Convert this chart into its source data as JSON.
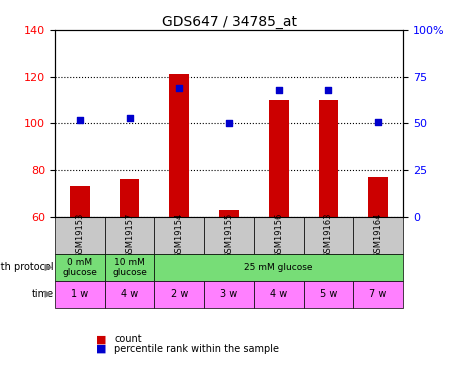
{
  "title": "GDS647 / 34785_at",
  "samples": [
    "GSM19153",
    "GSM19157",
    "GSM19154",
    "GSM19155",
    "GSM19156",
    "GSM19163",
    "GSM19164"
  ],
  "count_values": [
    73,
    76,
    121,
    63,
    110,
    110,
    77
  ],
  "percentile_values": [
    52,
    53,
    69,
    50,
    68,
    68,
    51
  ],
  "ylim_left": [
    60,
    140
  ],
  "ylim_right": [
    0,
    100
  ],
  "yticks_left": [
    60,
    80,
    100,
    120,
    140
  ],
  "yticks_right": [
    0,
    25,
    50,
    75,
    100
  ],
  "growth_protocol": [
    {
      "label": "0 mM\nglucose",
      "span": 1,
      "color": "#90EE90"
    },
    {
      "label": "10 mM\nglucose",
      "span": 1,
      "color": "#90EE90"
    },
    {
      "label": "25 mM glucose",
      "span": 5,
      "color": "#90EE90"
    }
  ],
  "time_labels": [
    "1 w",
    "4 w",
    "2 w",
    "3 w",
    "4 w",
    "5 w",
    "7 w"
  ],
  "time_color": "#FF80FF",
  "sample_bg_color": "#C8C8C8",
  "bar_color": "#CC0000",
  "dot_color": "#0000CC",
  "bar_width": 0.4,
  "legend_count_label": "count",
  "legend_pct_label": "percentile rank within the sample",
  "grid_color": "black",
  "grid_style": "dotted"
}
